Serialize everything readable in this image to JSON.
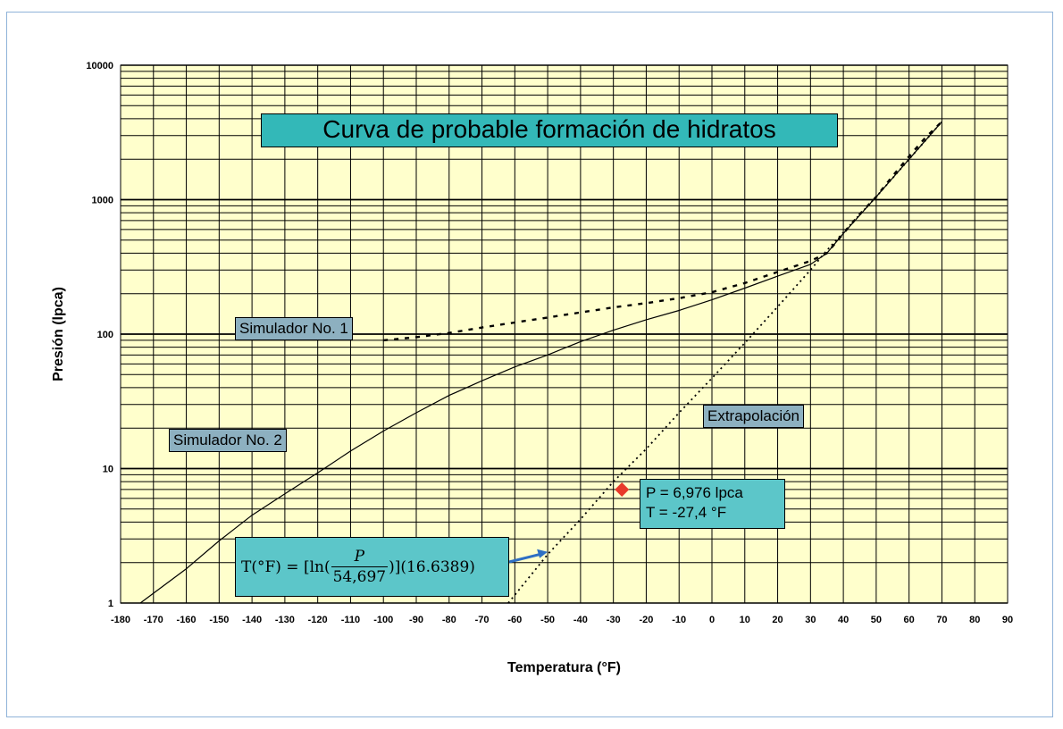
{
  "chart_data": {
    "type": "line",
    "title": "Curva de probable formación de hidratos",
    "xlabel": "Temperatura (°F)",
    "ylabel": "Presión (lpca)",
    "xlim": [
      -180,
      90
    ],
    "ylim": [
      1,
      10000
    ],
    "yscale": "log",
    "grid": true,
    "background": "#ffffcc",
    "x_ticks": [
      "-180",
      "-170",
      "-160",
      "-150",
      "-140",
      "-130",
      "-120",
      "-110",
      "-100",
      "-90",
      "-80",
      "-70",
      "-60",
      "-50",
      "-40",
      "-30",
      "-20",
      "-10",
      "0",
      "10",
      "20",
      "30",
      "40",
      "50",
      "60",
      "70",
      "80",
      "90"
    ],
    "y_ticks": [
      "1",
      "10",
      "100",
      "1000",
      "10000"
    ],
    "series": [
      {
        "name": "Simulador No. 1",
        "style": "dashed",
        "points": [
          [
            -100,
            90
          ],
          [
            -90,
            95
          ],
          [
            -80,
            102
          ],
          [
            -70,
            112
          ],
          [
            -60,
            122
          ],
          [
            -50,
            133
          ],
          [
            -40,
            145
          ],
          [
            -30,
            158
          ],
          [
            -20,
            170
          ],
          [
            -10,
            185
          ],
          [
            0,
            205
          ],
          [
            10,
            240
          ],
          [
            20,
            290
          ],
          [
            30,
            350
          ],
          [
            35,
            400
          ],
          [
            40,
            560
          ],
          [
            45,
            780
          ],
          [
            50,
            1050
          ],
          [
            55,
            1500
          ],
          [
            60,
            2100
          ],
          [
            65,
            2900
          ],
          [
            70,
            3800
          ]
        ]
      },
      {
        "name": "Simulador No. 2",
        "style": "solid",
        "points": [
          [
            -174,
            1
          ],
          [
            -160,
            1.8
          ],
          [
            -150,
            2.9
          ],
          [
            -140,
            4.5
          ],
          [
            -130,
            6.5
          ],
          [
            -120,
            9.3
          ],
          [
            -110,
            13.5
          ],
          [
            -100,
            19
          ],
          [
            -90,
            26
          ],
          [
            -80,
            35
          ],
          [
            -70,
            45
          ],
          [
            -60,
            57
          ],
          [
            -50,
            70
          ],
          [
            -40,
            88
          ],
          [
            -30,
            107
          ],
          [
            -20,
            128
          ],
          [
            -10,
            150
          ],
          [
            0,
            180
          ],
          [
            10,
            220
          ],
          [
            20,
            270
          ],
          [
            30,
            330
          ],
          [
            35,
            400
          ],
          [
            40,
            560
          ],
          [
            50,
            1050
          ],
          [
            60,
            2000
          ],
          [
            70,
            3800
          ]
        ]
      },
      {
        "name": "Extrapolación",
        "style": "dotted",
        "points": [
          [
            -62,
            1
          ],
          [
            -50,
            2.3
          ],
          [
            -40,
            4.2
          ],
          [
            -30,
            8
          ],
          [
            -20,
            14
          ],
          [
            -10,
            26
          ],
          [
            0,
            47
          ],
          [
            10,
            86
          ],
          [
            20,
            160
          ],
          [
            30,
            300
          ],
          [
            35,
            420
          ],
          [
            40,
            570
          ],
          [
            50,
            1050
          ],
          [
            60,
            2000
          ],
          [
            70,
            3800
          ]
        ]
      }
    ],
    "marker": {
      "x": -27.4,
      "y": 6.976,
      "color": "#e8392a"
    },
    "arrow": {
      "x": -50,
      "y": 2.4,
      "color": "#2e6fc4"
    }
  },
  "labels": {
    "sim1": "Simulador No. 1",
    "sim2": "Simulador No. 2",
    "extrap": "Extrapolación",
    "point_p": "P = 6,976 lpca",
    "point_t": "T = -27,4 °F"
  },
  "formula": {
    "lhs": "T(°F) = [ln(",
    "numerator": "P",
    "denominator": "54,697",
    "rhs": ")](16.6389)"
  }
}
